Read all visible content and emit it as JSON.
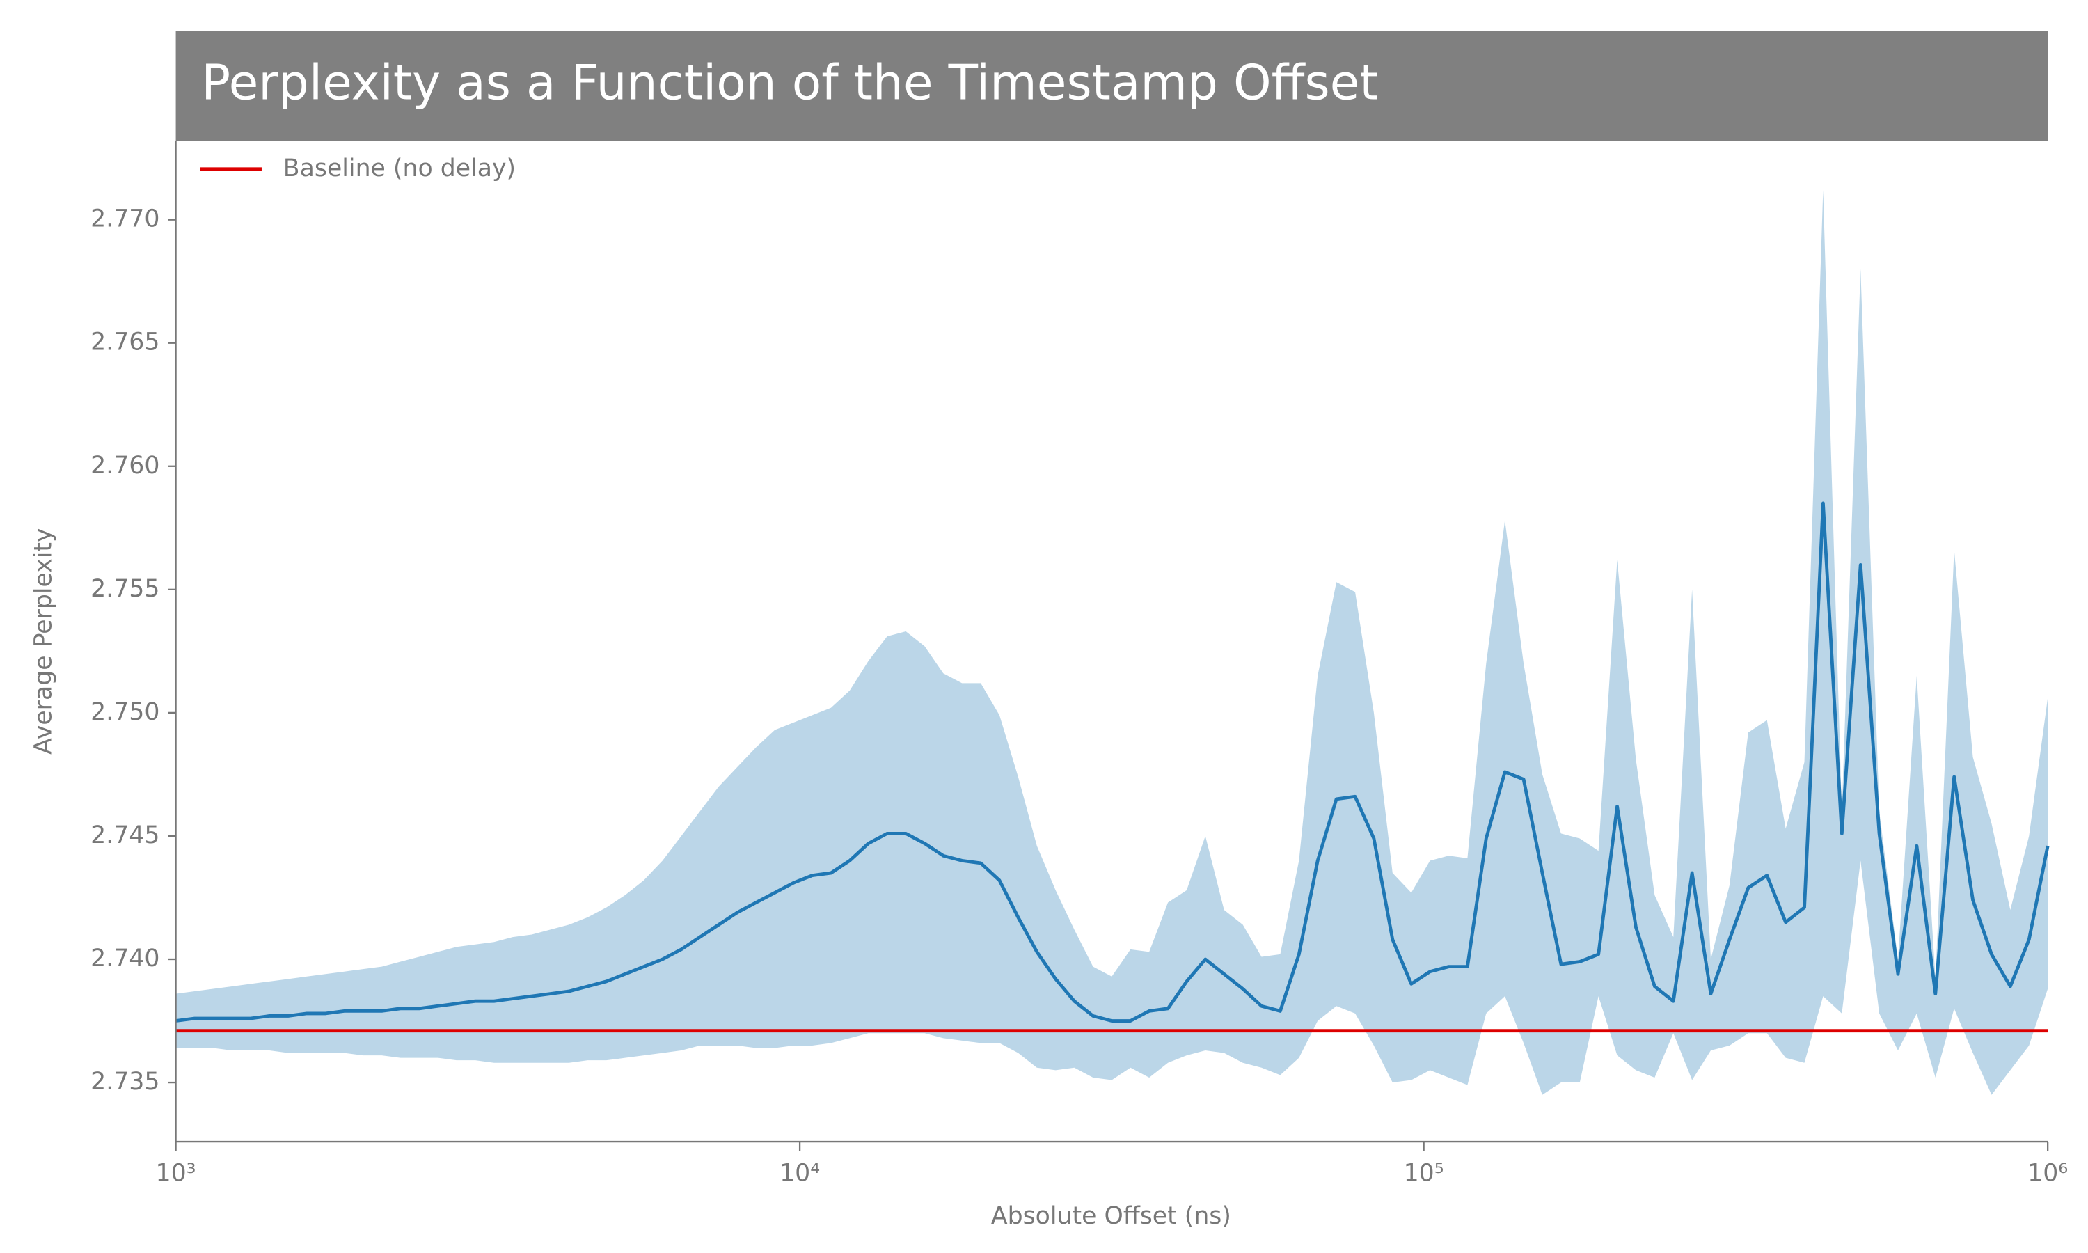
{
  "chart_data": {
    "type": "line",
    "title": "Perplexity as a Function of the Timestamp Offset",
    "x_label": "Absolute Offset (ns)",
    "y_label": "Average Perplexity",
    "xscale": "log",
    "xlim": [
      1000,
      1000000
    ],
    "xticks": [
      {
        "value": 1000,
        "label": "10³"
      },
      {
        "value": 10000,
        "label": "10⁴"
      },
      {
        "value": 100000,
        "label": "10⁵"
      },
      {
        "value": 1000000,
        "label": "10⁶"
      }
    ],
    "ylim": [
      2.7326,
      2.7732
    ],
    "yticks": [
      2.735,
      {
        "value": 2.74,
        "label": "2.740"
      },
      2.745,
      {
        "value": 2.75,
        "label": "2.750"
      },
      2.755,
      {
        "value": 2.76,
        "label": "2.760"
      },
      2.765,
      {
        "value": 2.77,
        "label": "2.770"
      }
    ],
    "grid": false,
    "legend": "upper left",
    "x": [
      1000,
      1072,
      1148,
      1230,
      1318,
      1413,
      1514,
      1622,
      1738,
      1862,
      1995,
      2138,
      2291,
      2455,
      2630,
      2818,
      3020,
      3236,
      3467,
      3715,
      3981,
      4266,
      4571,
      4898,
      5248,
      5623,
      6026,
      6457,
      6918,
      7413,
      7943,
      8511,
      9120,
      9772,
      10471,
      11220,
      12023,
      12882,
      13804,
      14791,
      15849,
      16982,
      18197,
      19498,
      20893,
      22387,
      23988,
      25704,
      27542,
      29512,
      31623,
      33884,
      36308,
      38905,
      41687,
      44668,
      47863,
      51286,
      54954,
      58884,
      63096,
      67608,
      72444,
      77625,
      83176,
      89125,
      95499,
      102329,
      109648,
      117490,
      125893,
      134896,
      144544,
      154882,
      165959,
      177828,
      190546,
      204174,
      218776,
      234423,
      251189,
      269153,
      288403,
      309030,
      331131,
      354813,
      380189,
      407380,
      436516,
      467735,
      501187,
      537032,
      575440,
      616595,
      660693,
      707946,
      758578,
      812831,
      870964,
      933254,
      1000000
    ],
    "series": [
      {
        "color": "#1f77b4",
        "values": [
          2.7375,
          2.7376,
          2.7376,
          2.7376,
          2.7376,
          2.7377,
          2.7377,
          2.7378,
          2.7378,
          2.7379,
          2.7379,
          2.7379,
          2.738,
          2.738,
          2.7381,
          2.7382,
          2.7383,
          2.7383,
          2.7384,
          2.7385,
          2.7386,
          2.7387,
          2.7389,
          2.7391,
          2.7394,
          2.7397,
          2.74,
          2.7404,
          2.7409,
          2.7414,
          2.7419,
          2.7423,
          2.7427,
          2.7431,
          2.7434,
          2.7435,
          2.744,
          2.7447,
          2.7451,
          2.7451,
          2.7447,
          2.7442,
          2.744,
          2.7439,
          2.7432,
          2.7417,
          2.7403,
          2.7392,
          2.7383,
          2.7377,
          2.7375,
          2.7375,
          2.7379,
          2.738,
          2.7391,
          2.74,
          2.7394,
          2.7388,
          2.7381,
          2.7379,
          2.7402,
          2.744,
          2.7465,
          2.7466,
          2.7449,
          2.7408,
          2.739,
          2.7395,
          2.7397,
          2.7397,
          2.7449,
          2.7476,
          2.7473,
          2.7435,
          2.7398,
          2.7399,
          2.7402,
          2.7462,
          2.7413,
          2.7389,
          2.7383,
          2.7435,
          2.7386,
          2.7408,
          2.7429,
          2.7434,
          2.7415,
          2.7421,
          2.7585,
          2.7451,
          2.756,
          2.7451,
          2.7394,
          2.7446,
          2.7386,
          2.7474,
          2.7424,
          2.7402,
          2.7389,
          2.7408,
          2.7446
        ]
      }
    ],
    "band": {
      "color": "#1f77b4",
      "opacity": 0.3,
      "upper": [
        2.7386,
        2.7387,
        2.7388,
        2.7389,
        2.739,
        2.7391,
        2.7392,
        2.7393,
        2.7394,
        2.7395,
        2.7396,
        2.7397,
        2.7399,
        2.7401,
        2.7403,
        2.7405,
        2.7406,
        2.7407,
        2.7409,
        2.741,
        2.7412,
        2.7414,
        2.7417,
        2.7421,
        2.7426,
        2.7432,
        2.744,
        2.745,
        2.746,
        2.747,
        2.7478,
        2.7486,
        2.7493,
        2.7496,
        2.7499,
        2.7502,
        2.7509,
        2.7521,
        2.7531,
        2.7533,
        2.7527,
        2.7516,
        2.7512,
        2.7512,
        2.7499,
        2.7474,
        2.7446,
        2.7428,
        2.7412,
        2.7397,
        2.7393,
        2.7404,
        2.7403,
        2.7423,
        2.7428,
        2.745,
        2.742,
        2.7414,
        2.7401,
        2.7402,
        2.744,
        2.7515,
        2.7553,
        2.7549,
        2.75,
        2.7435,
        2.7427,
        2.744,
        2.7442,
        2.7441,
        2.752,
        2.7578,
        2.752,
        2.7475,
        2.7451,
        2.7449,
        2.7444,
        2.7562,
        2.7481,
        2.7426,
        2.7409,
        2.755,
        2.74,
        2.743,
        2.7492,
        2.7497,
        2.7453,
        2.748,
        2.7712,
        2.746,
        2.768,
        2.746,
        2.74,
        2.7515,
        2.7392,
        2.7566,
        2.7482,
        2.7455,
        2.742,
        2.745,
        2.7506
      ],
      "lower": [
        2.7364,
        2.7364,
        2.7364,
        2.7363,
        2.7363,
        2.7363,
        2.7362,
        2.7362,
        2.7362,
        2.7362,
        2.7361,
        2.7361,
        2.736,
        2.736,
        2.736,
        2.7359,
        2.7359,
        2.7358,
        2.7358,
        2.7358,
        2.7358,
        2.7358,
        2.7359,
        2.7359,
        2.736,
        2.7361,
        2.7362,
        2.7363,
        2.7365,
        2.7365,
        2.7365,
        2.7364,
        2.7364,
        2.7365,
        2.7365,
        2.7366,
        2.7368,
        2.737,
        2.737,
        2.737,
        2.737,
        2.7368,
        2.7367,
        2.7366,
        2.7366,
        2.7362,
        2.7356,
        2.7355,
        2.7356,
        2.7352,
        2.7351,
        2.7356,
        2.7352,
        2.7358,
        2.7361,
        2.7363,
        2.7362,
        2.7358,
        2.7356,
        2.7353,
        2.736,
        2.7375,
        2.7381,
        2.7378,
        2.7365,
        2.735,
        2.7351,
        2.7355,
        2.7352,
        2.7349,
        2.7378,
        2.7385,
        2.7366,
        2.7345,
        2.735,
        2.735,
        2.7385,
        2.7361,
        2.7355,
        2.7352,
        2.737,
        2.7351,
        2.7363,
        2.7365,
        2.737,
        2.737,
        2.736,
        2.7358,
        2.7385,
        2.7378,
        2.744,
        2.7378,
        2.7363,
        2.7378,
        2.7352,
        2.738,
        2.7362,
        2.7345,
        2.7355,
        2.7365,
        2.7388
      ]
    },
    "baseline": {
      "name": "Baseline (no delay)",
      "value": 2.7371,
      "color": "#dd0000"
    }
  }
}
